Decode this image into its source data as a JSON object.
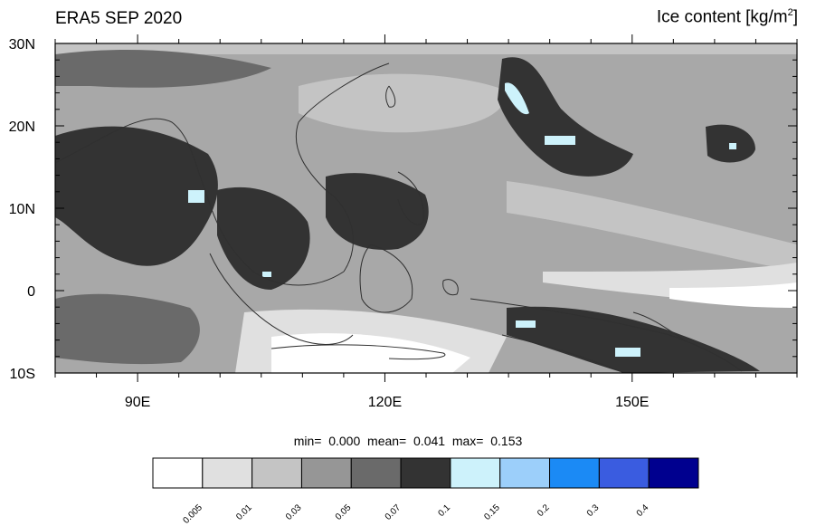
{
  "title_left": "ERA5 SEP 2020",
  "title_right": {
    "text": "Ice content  [kg/m",
    "sup": "2",
    "close": "]"
  },
  "stats": {
    "min_label": "min=",
    "min": "0.000",
    "mean_label": "mean=",
    "mean": "0.041",
    "max_label": "max=",
    "max": "0.153"
  },
  "map": {
    "projection": "cylindrical equidistant",
    "lon_range": [
      80,
      170
    ],
    "lat_range": [
      -10,
      30
    ],
    "y_tick_labels": [
      "30N",
      "20N",
      "10N",
      "0",
      "10S"
    ],
    "y_tick_values": [
      30,
      20,
      10,
      0,
      -10
    ],
    "x_tick_labels": [
      "90E",
      "120E",
      "150E"
    ],
    "x_tick_values": [
      90,
      120,
      150
    ]
  },
  "colorbar": {
    "boundaries": [
      "0.005",
      "0.01",
      "0.03",
      "0.05",
      "0.07",
      "0.1",
      "0.15",
      "0.2",
      "0.3",
      "0.4"
    ],
    "colors": [
      "#ffffff",
      "#e0e0e0",
      "#c4c4c4",
      "#969696",
      "#6a6a6a",
      "#333333",
      "#cdf2fb",
      "#9ccffa",
      "#1b8af5",
      "#3a5ce0",
      "#00008f"
    ]
  }
}
